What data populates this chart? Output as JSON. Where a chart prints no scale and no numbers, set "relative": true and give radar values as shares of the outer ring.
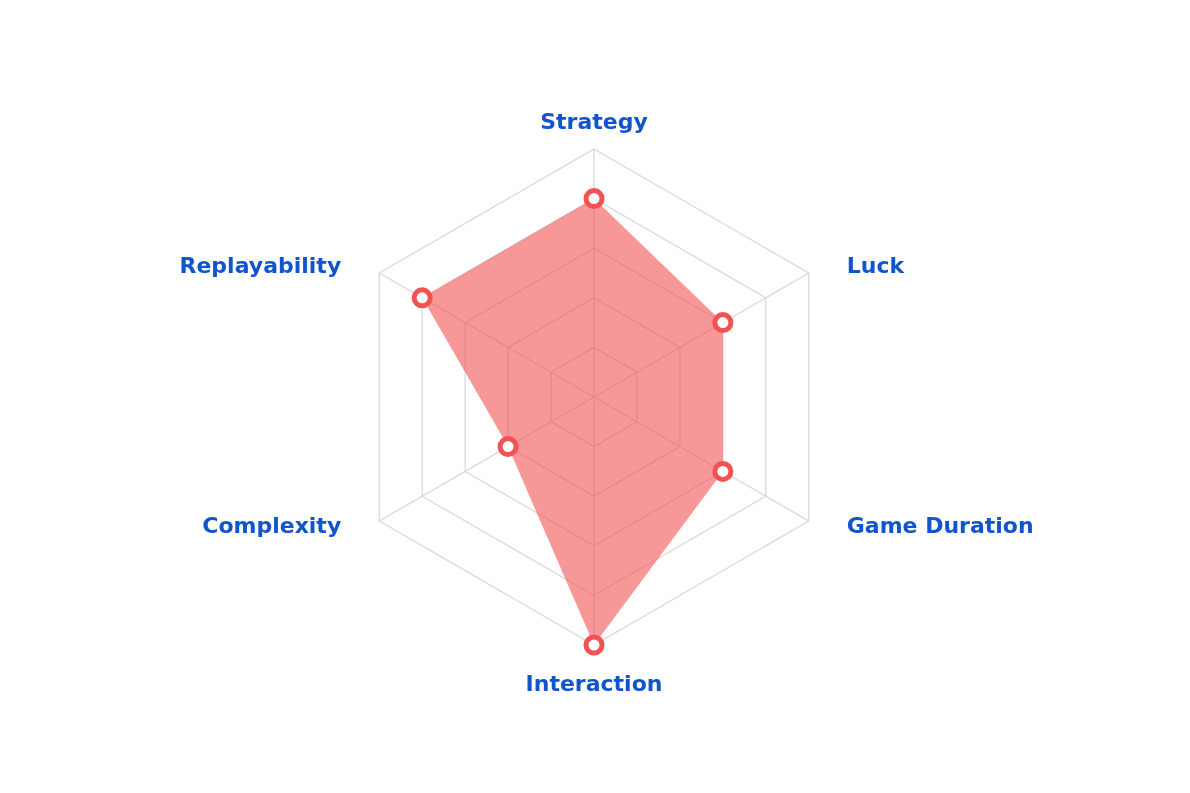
{
  "chart_data": {
    "type": "radar",
    "relative": true,
    "grid": true,
    "marker": "circle",
    "categories": [
      "Strategy",
      "Luck",
      "Game Duration",
      "Interaction",
      "Complexity",
      "Replayability"
    ],
    "series": [
      {
        "color": "#f25252",
        "values": [
          0.8,
          0.6,
          0.6,
          1.0,
          0.4,
          0.8
        ]
      }
    ]
  }
}
